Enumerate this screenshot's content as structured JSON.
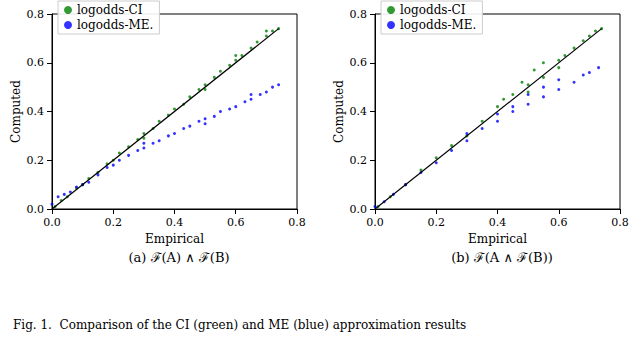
{
  "caption": "Fig. 1.  Comparison of the CI (green) and ME (blue) approximation results",
  "chart_data": [
    {
      "type": "scatter",
      "title": "(a) ℱ(A) ∧ ℱ(B)",
      "x_label": "Empirical",
      "y_label": "Computed",
      "xlim": [
        0,
        0.8
      ],
      "ylim": [
        0,
        0.8
      ],
      "xticks": [
        {
          "value": 0,
          "label": "0.0"
        },
        0.2,
        0.4,
        0.6,
        0.8
      ],
      "yticks": [
        {
          "value": 0,
          "label": "0.0"
        },
        0.2,
        0.4,
        0.6,
        0.8
      ],
      "grid": false,
      "legend": "upper left",
      "marker": "circle",
      "series": [
        {
          "name": "logodds-CI",
          "color": "#008000",
          "x": [
            0.01,
            0.03,
            0.05,
            0.08,
            0.1,
            0.12,
            0.15,
            0.18,
            0.2,
            0.22,
            0.25,
            0.28,
            0.3,
            0.33,
            0.35,
            0.38,
            0.4,
            0.43,
            0.45,
            0.48,
            0.5,
            0.53,
            0.55,
            0.58,
            0.6,
            0.62,
            0.65,
            0.67,
            0.7,
            0.72,
            0.74,
            0.3,
            0.5,
            0.6,
            0.7
          ],
          "values": [
            0.01,
            0.035,
            0.05,
            0.085,
            0.1,
            0.125,
            0.15,
            0.185,
            0.2,
            0.23,
            0.255,
            0.285,
            0.31,
            0.33,
            0.36,
            0.385,
            0.41,
            0.43,
            0.46,
            0.49,
            0.51,
            0.54,
            0.565,
            0.59,
            0.61,
            0.63,
            0.66,
            0.685,
            0.71,
            0.73,
            0.74,
            0.29,
            0.49,
            0.63,
            0.73
          ]
        },
        {
          "name": "logodds-ME.",
          "color": "#0000ff",
          "x": [
            0.0,
            0.02,
            0.04,
            0.06,
            0.08,
            0.1,
            0.12,
            0.15,
            0.18,
            0.2,
            0.22,
            0.25,
            0.28,
            0.3,
            0.33,
            0.35,
            0.38,
            0.4,
            0.43,
            0.45,
            0.48,
            0.5,
            0.53,
            0.55,
            0.58,
            0.6,
            0.63,
            0.65,
            0.68,
            0.7,
            0.72,
            0.74,
            0.3,
            0.5,
            0.65
          ],
          "values": [
            0.02,
            0.05,
            0.06,
            0.07,
            0.09,
            0.1,
            0.11,
            0.14,
            0.17,
            0.18,
            0.2,
            0.22,
            0.24,
            0.25,
            0.27,
            0.28,
            0.3,
            0.31,
            0.33,
            0.34,
            0.36,
            0.37,
            0.38,
            0.4,
            0.41,
            0.42,
            0.44,
            0.45,
            0.47,
            0.48,
            0.5,
            0.51,
            0.27,
            0.35,
            0.47
          ]
        },
        {
          "type": "line",
          "color": "#000000",
          "x": [
            0,
            0.74
          ],
          "values": [
            0,
            0.74
          ]
        }
      ]
    },
    {
      "type": "scatter",
      "title": "(b) ℱ(A ∧ ℱ(B))",
      "x_label": "Empirical",
      "y_label": "Computed",
      "xlim": [
        0,
        0.8
      ],
      "ylim": [
        0,
        0.8
      ],
      "xticks": [
        {
          "value": 0,
          "label": "0.0"
        },
        0.2,
        0.4,
        0.6,
        0.8
      ],
      "yticks": [
        {
          "value": 0,
          "label": "0.0"
        },
        0.2,
        0.4,
        0.6,
        0.8
      ],
      "grid": false,
      "legend": "upper left",
      "marker": "circle",
      "series": [
        {
          "name": "logodds-CI",
          "color": "#008000",
          "x": [
            0.01,
            0.05,
            0.1,
            0.15,
            0.2,
            0.25,
            0.3,
            0.35,
            0.4,
            0.42,
            0.45,
            0.48,
            0.5,
            0.52,
            0.55,
            0.55,
            0.6,
            0.62,
            0.65,
            0.68,
            0.7,
            0.72,
            0.74,
            0.5,
            0.6
          ],
          "values": [
            0.01,
            0.05,
            0.1,
            0.16,
            0.21,
            0.26,
            0.3,
            0.36,
            0.42,
            0.45,
            0.47,
            0.52,
            0.51,
            0.57,
            0.6,
            0.54,
            0.61,
            0.63,
            0.66,
            0.69,
            0.71,
            0.73,
            0.74,
            0.48,
            0.58
          ]
        },
        {
          "name": "logodds-ME.",
          "color": "#0000ff",
          "x": [
            0.0,
            0.03,
            0.06,
            0.1,
            0.15,
            0.2,
            0.25,
            0.3,
            0.3,
            0.35,
            0.4,
            0.4,
            0.45,
            0.5,
            0.5,
            0.55,
            0.55,
            0.6,
            0.6,
            0.65,
            0.68,
            0.7,
            0.73,
            0.45
          ],
          "values": [
            0.01,
            0.03,
            0.06,
            0.1,
            0.15,
            0.19,
            0.24,
            0.28,
            0.31,
            0.33,
            0.36,
            0.39,
            0.4,
            0.43,
            0.47,
            0.46,
            0.5,
            0.49,
            0.53,
            0.52,
            0.55,
            0.56,
            0.58,
            0.42
          ]
        },
        {
          "type": "line",
          "color": "#000000",
          "x": [
            0,
            0.74
          ],
          "values": [
            0,
            0.74
          ]
        }
      ]
    }
  ]
}
